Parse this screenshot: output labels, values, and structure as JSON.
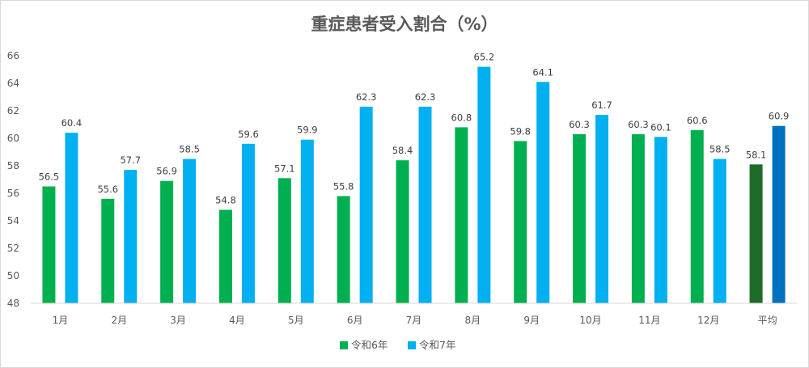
{
  "chart_data": {
    "type": "bar",
    "title": "重症患者受入割合（%）",
    "categories": [
      "1月",
      "2月",
      "3月",
      "4月",
      "5月",
      "6月",
      "7月",
      "8月",
      "9月",
      "10月",
      "11月",
      "12月",
      "平均"
    ],
    "series": [
      {
        "name": "令和6年",
        "color": "#00b050",
        "values": [
          56.5,
          55.6,
          56.9,
          54.8,
          57.1,
          55.8,
          58.4,
          60.8,
          59.8,
          60.3,
          60.3,
          60.6,
          58.1
        ],
        "value_labels": [
          "56.5",
          "55.6",
          "56.9",
          "54.8",
          "57.1",
          "55.8",
          "58.4",
          "60.8",
          "59.8",
          "60.3",
          "60.3",
          "60.6",
          "58.1"
        ]
      },
      {
        "name": "令和7年",
        "color": "#00b0f0",
        "values": [
          60.4,
          57.7,
          58.5,
          59.6,
          59.9,
          62.3,
          62.3,
          65.2,
          64.1,
          61.7,
          60.1,
          58.5,
          60.9
        ],
        "value_labels": [
          "60.4",
          "57.7",
          "58.5",
          "59.6",
          "59.9",
          "62.3",
          "62.3",
          "65.2",
          "64.1",
          "61.7",
          "60.1",
          "58.5",
          "60.9"
        ]
      }
    ],
    "highlight_colors": {
      "令和6年": "#1e6b2a",
      "令和7年": "#0070c0"
    },
    "highlight_category": "平均",
    "ylim": [
      48,
      66
    ],
    "yticks": [
      "48",
      "50",
      "52",
      "54",
      "56",
      "58",
      "60",
      "62",
      "64",
      "66"
    ],
    "legend_position": "bottom-center",
    "grid": false
  }
}
